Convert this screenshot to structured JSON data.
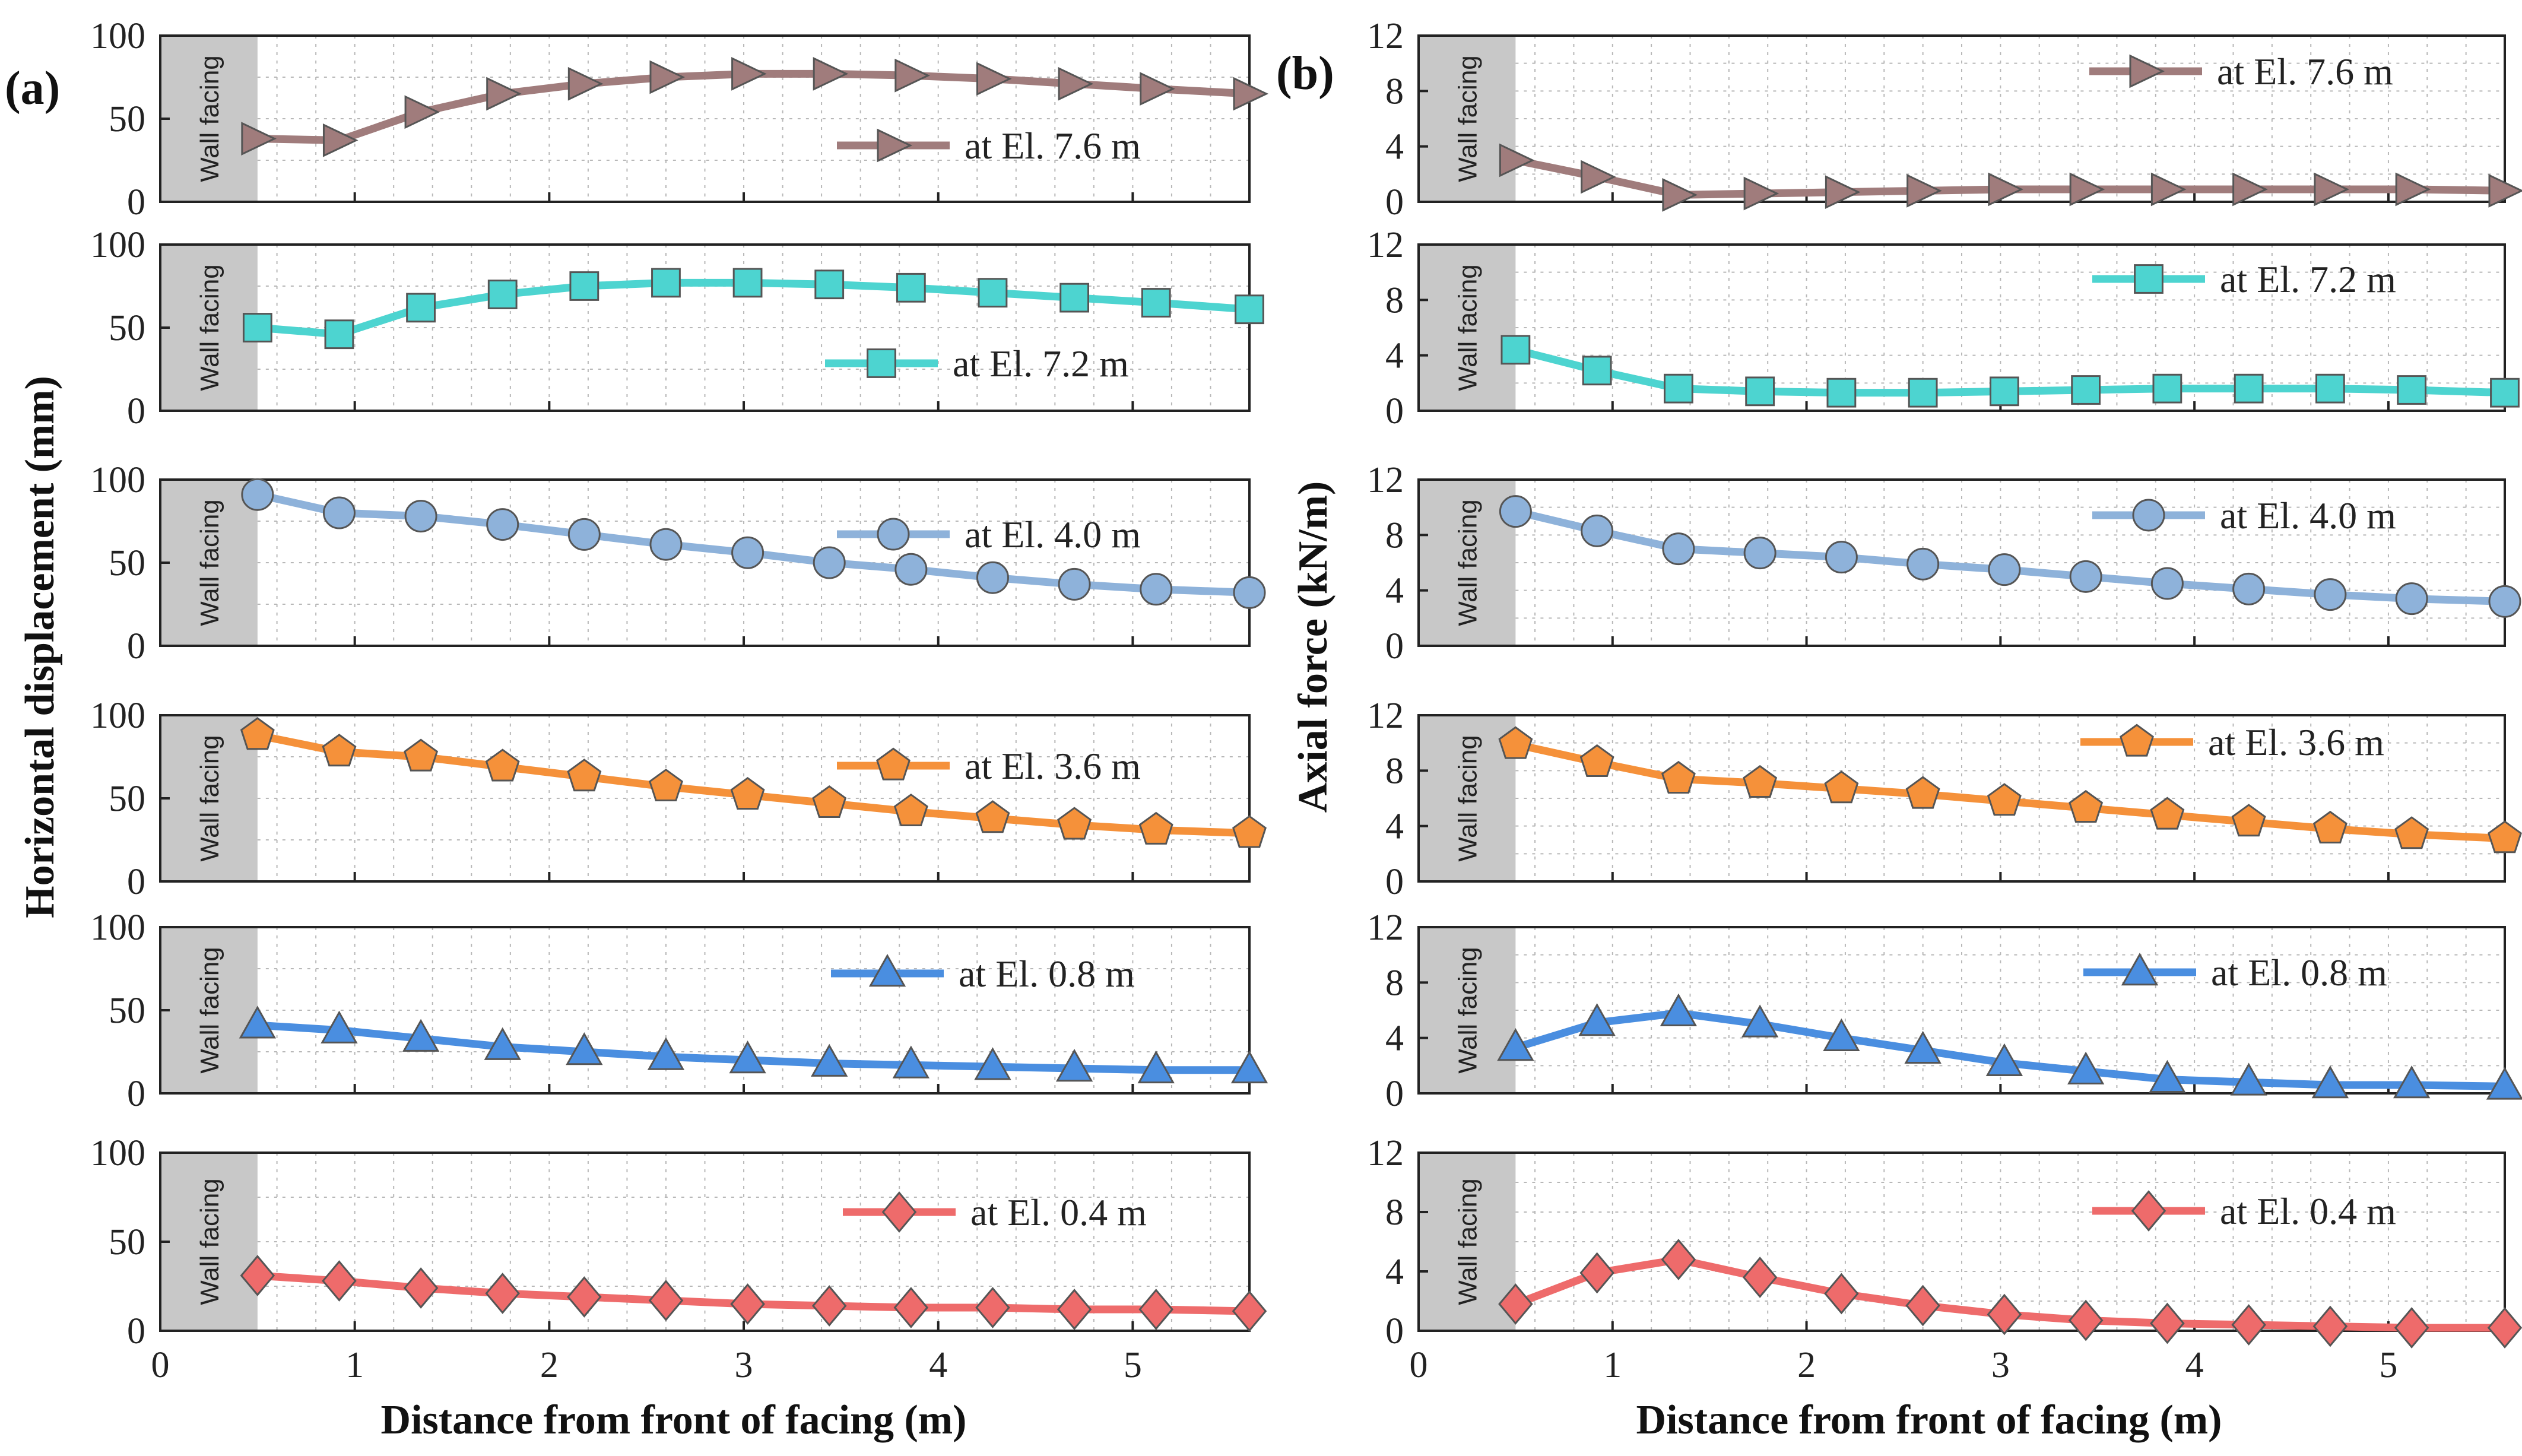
{
  "figure": {
    "panel_labels": [
      "(a)",
      "(b)"
    ],
    "facing_label": "Wall facing"
  },
  "chart_data": [
    {
      "type": "line",
      "panel": "(a)",
      "xlabel": "Distance from  front of facing (m)",
      "ylabel": "Horizontal displacement (mm)",
      "xlim": [
        0,
        5.6
      ],
      "ylim": [
        0,
        100
      ],
      "xticks": [
        0,
        1,
        2,
        3,
        4,
        5
      ],
      "yticks": [
        0,
        50,
        100
      ],
      "grid": true,
      "wall_facing_region": [
        0,
        0.5
      ],
      "x": [
        0.5,
        0.92,
        1.34,
        1.76,
        2.18,
        2.6,
        3.02,
        3.44,
        3.86,
        4.28,
        4.7,
        5.12,
        5.6
      ],
      "series": [
        {
          "name": "at El. 7.6 m",
          "color": "#a07c7c",
          "marker": "triangle-right",
          "values": [
            38,
            37,
            54,
            65,
            71,
            75,
            77,
            77,
            76,
            74,
            71,
            68,
            65
          ]
        },
        {
          "name": "at El. 7.2 m",
          "color": "#4dd4d0",
          "marker": "square",
          "values": [
            50,
            46,
            62,
            70,
            75,
            77,
            77,
            76,
            74,
            71,
            68,
            65,
            61
          ]
        },
        {
          "name": "at El. 4.0 m",
          "color": "#8eb2da",
          "marker": "circle",
          "values": [
            91,
            80,
            78,
            73,
            67,
            61,
            56,
            50,
            46,
            41,
            37,
            34,
            32
          ]
        },
        {
          "name": "at El. 3.6 m",
          "color": "#f5913a",
          "marker": "pentagon",
          "values": [
            88,
            78,
            75,
            69,
            63,
            57,
            52,
            47,
            42,
            38,
            34,
            31,
            29
          ]
        },
        {
          "name": "at El. 0.8 m",
          "color": "#4a8ee0",
          "marker": "triangle-up",
          "values": [
            41,
            38,
            33,
            28,
            25,
            22,
            20,
            18,
            17,
            16,
            15,
            14,
            14
          ]
        },
        {
          "name": "at El. 0.4 m",
          "color": "#ee6b6b",
          "marker": "diamond",
          "values": [
            31,
            28,
            24,
            21,
            19,
            17,
            15,
            14,
            13,
            13,
            12,
            12,
            11
          ]
        }
      ]
    },
    {
      "type": "line",
      "panel": "(b)",
      "xlabel": "Distance from front of facing (m)",
      "ylabel": "Axial force (kN/m)",
      "xlim": [
        0,
        5.6
      ],
      "ylim": [
        0,
        12
      ],
      "xticks": [
        0,
        1,
        2,
        3,
        4,
        5
      ],
      "yticks": [
        0,
        4,
        8,
        12
      ],
      "grid": true,
      "wall_facing_region": [
        0,
        0.5
      ],
      "x": [
        0.5,
        0.92,
        1.34,
        1.76,
        2.18,
        2.6,
        3.02,
        3.44,
        3.86,
        4.28,
        4.7,
        5.12,
        5.6
      ],
      "series": [
        {
          "name": "at El. 7.6 m",
          "color": "#a07c7c",
          "marker": "triangle-right",
          "values": [
            3.0,
            1.8,
            0.5,
            0.6,
            0.7,
            0.8,
            0.9,
            0.9,
            0.9,
            0.9,
            0.9,
            0.9,
            0.8
          ]
        },
        {
          "name": "at El. 7.2 m",
          "color": "#4dd4d0",
          "marker": "square",
          "values": [
            4.4,
            2.9,
            1.6,
            1.4,
            1.3,
            1.3,
            1.4,
            1.5,
            1.6,
            1.6,
            1.6,
            1.5,
            1.3
          ]
        },
        {
          "name": "at El. 4.0 m",
          "color": "#8eb2da",
          "marker": "circle",
          "values": [
            9.7,
            8.3,
            7.0,
            6.7,
            6.4,
            5.9,
            5.5,
            5.0,
            4.5,
            4.1,
            3.7,
            3.4,
            3.2
          ]
        },
        {
          "name": "at El. 3.6 m",
          "color": "#f5913a",
          "marker": "pentagon",
          "values": [
            9.9,
            8.6,
            7.4,
            7.1,
            6.7,
            6.3,
            5.8,
            5.3,
            4.8,
            4.3,
            3.8,
            3.4,
            3.1
          ]
        },
        {
          "name": "at El. 0.8 m",
          "color": "#4a8ee0",
          "marker": "triangle-up",
          "values": [
            3.3,
            5.1,
            5.8,
            5.0,
            4.0,
            3.1,
            2.2,
            1.6,
            1.0,
            0.8,
            0.6,
            0.6,
            0.5
          ]
        },
        {
          "name": "at El. 0.4 m",
          "color": "#ee6b6b",
          "marker": "diamond",
          "values": [
            1.8,
            3.9,
            4.8,
            3.6,
            2.5,
            1.7,
            1.1,
            0.7,
            0.5,
            0.4,
            0.3,
            0.2,
            0.2
          ]
        }
      ]
    }
  ]
}
